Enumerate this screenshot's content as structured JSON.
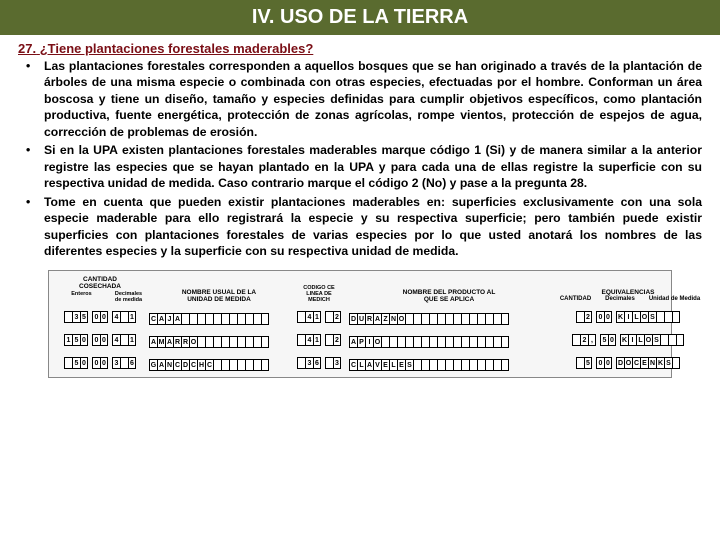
{
  "header": {
    "title": "IV. USO DE LA TIERRA"
  },
  "question": {
    "number": "27.",
    "text": "¿Tiene plantaciones forestales maderables?"
  },
  "bullets": [
    "Las plantaciones forestales corresponden a aquellos bosques que se han originado a través de la plantación de árboles de una misma especie o combinada con otras especies, efectuadas por el hombre. Conforman un área boscosa y tiene un diseño, tamaño y especies definidas para cumplir objetivos específicos, como plantación productiva, fuente energética, protección de zonas agrícolas, rompe vientos, protección de espejos de agua, corrección de problemas de erosión.",
    "Si en la UPA existen plantaciones forestales maderables marque código 1 (Si) y de manera similar a la anterior registre las especies que se hayan plantado en la UPA y para cada una de ellas registre la superficie con su respectiva unidad de medida. Caso contrario marque el código 2 (No) y pase a la pregunta 28.",
    "Tome en cuenta que pueden existir plantaciones maderables en: superficies exclusivamente con una sola especie maderable para ello registrará la especie y su respectiva superficie; pero también puede existir superficies con plantaciones forestales de varias especies por lo que usted anotará los nombres de las diferentes especies y la superficie con su respectiva unidad de medida."
  ],
  "form": {
    "headers": {
      "cant": "CANTIDAD\nCOSECHADA",
      "ent": "Enteros",
      "dec": "Decimales de medida",
      "unidad": "NOMBRE USUAL DE LA\nUNIDAD DE MEDIDA",
      "codigo": "CODIGO CE\nLINEA DE\nMEDICH",
      "producto": "NOMBRE DEL PRODUCTO AL\nQUE SE APLICA",
      "equiv": "EQUIVALENCIAS",
      "equiv_cant": "CANTIDAD",
      "equiv_dec": "Decimales",
      "equiv_um": "Unidad de Medida"
    },
    "rows": [
      {
        "ent": [
          "",
          "3",
          "5"
        ],
        "dec": [
          "0",
          "0"
        ],
        "um": [
          "4",
          "",
          "1"
        ],
        "unidad": [
          "C",
          "A",
          "J",
          "A",
          "",
          "",
          "",
          "",
          "",
          "",
          "",
          "",
          "",
          "",
          ""
        ],
        "cod1": [
          "",
          "4",
          "1"
        ],
        "cod2": [
          "",
          "2"
        ],
        "prod": [
          "D",
          "U",
          "R",
          "A",
          "Z",
          "N",
          "O",
          "",
          "",
          "",
          "",
          "",
          "",
          "",
          "",
          "",
          "",
          "",
          "",
          ""
        ],
        "eq1": [
          "",
          "2"
        ],
        "eq2": [
          "0",
          "0"
        ],
        "equ": [
          "K",
          "I",
          "L",
          "O",
          "S",
          "",
          "",
          ""
        ]
      },
      {
        "ent": [
          "1",
          "5",
          "0"
        ],
        "dec": [
          "0",
          "0"
        ],
        "um": [
          "4",
          "",
          "1"
        ],
        "unidad": [
          "A",
          "M",
          "A",
          "R",
          "R",
          "O",
          "",
          "",
          "",
          "",
          "",
          "",
          "",
          "",
          ""
        ],
        "cod1": [
          "",
          "4",
          "1"
        ],
        "cod2": [
          "",
          "2"
        ],
        "prod": [
          "A",
          "P",
          "I",
          "O",
          "",
          "",
          "",
          "",
          "",
          "",
          "",
          "",
          "",
          "",
          "",
          "",
          "",
          "",
          "",
          ""
        ],
        "eq1": [
          "",
          "2",
          ","
        ],
        "eq2": [
          "5",
          "0"
        ],
        "equ": [
          "K",
          "I",
          "L",
          "O",
          "S",
          "",
          "",
          ""
        ]
      },
      {
        "ent": [
          "",
          "5",
          "0"
        ],
        "dec": [
          "0",
          "0"
        ],
        "um": [
          "3",
          "",
          "6"
        ],
        "unidad": [
          "G",
          "A",
          "N",
          "C",
          "D",
          "C",
          "H",
          "C",
          "",
          "",
          "",
          "",
          "",
          "",
          ""
        ],
        "cod1": [
          "",
          "3",
          "6"
        ],
        "cod2": [
          "",
          "3"
        ],
        "prod": [
          "C",
          "L",
          "A",
          "V",
          "E",
          "L",
          "E",
          "S",
          "",
          "",
          "",
          "",
          "",
          "",
          "",
          "",
          "",
          "",
          "",
          ""
        ],
        "eq1": [
          "",
          "5"
        ],
        "eq2": [
          "0",
          "0"
        ],
        "equ": [
          "D",
          "O",
          "C",
          "E",
          "N",
          "K",
          "S",
          ""
        ]
      }
    ]
  },
  "colors": {
    "header_bg": "#5a6b2f",
    "question_color": "#7a0e15"
  }
}
